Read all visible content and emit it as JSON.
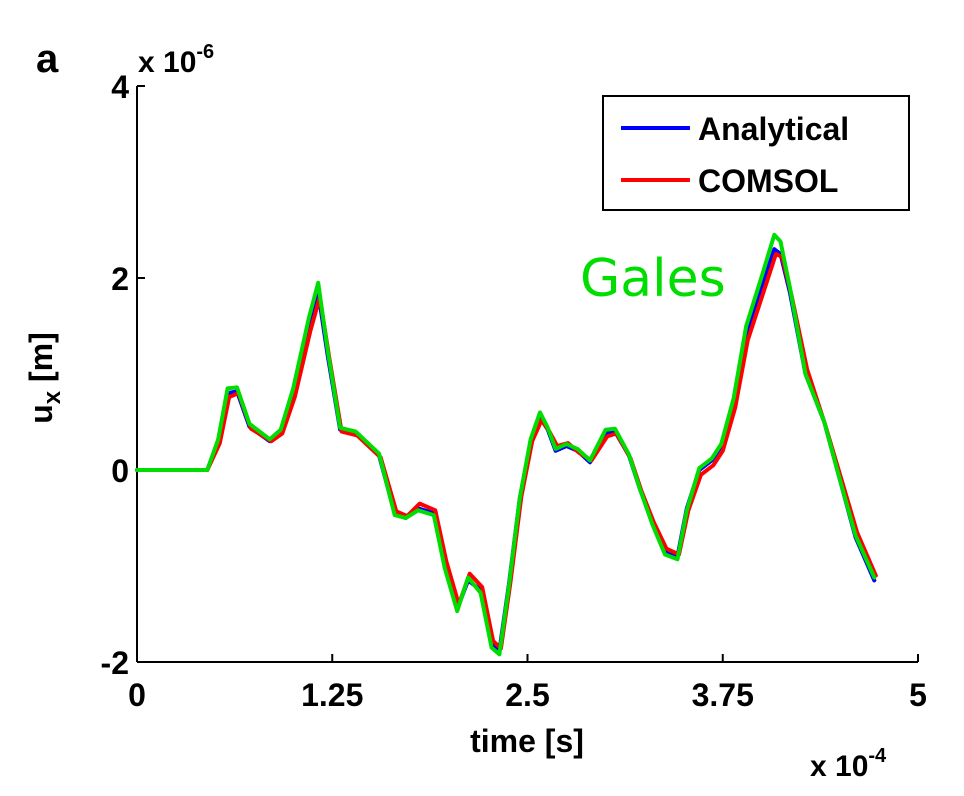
{
  "panel_label": "a",
  "chart_data": {
    "type": "line",
    "xlabel": "time [s]",
    "ylabel_base": "u",
    "ylabel_sub": "x",
    "ylabel_unit": " [m]",
    "x_scale_label": "x 10",
    "x_scale_exp": "-4",
    "y_scale_label": "x 10",
    "y_scale_exp": "-6",
    "xlim": [
      0,
      5
    ],
    "ylim": [
      -2,
      4
    ],
    "x_ticks": [
      0,
      1.25,
      2.5,
      3.75,
      5
    ],
    "x_tick_labels": [
      "0",
      "1.25",
      "2.5",
      "3.75",
      "5"
    ],
    "y_ticks": [
      -2,
      0,
      2,
      4
    ],
    "y_tick_labels": [
      "-2",
      "0",
      "2",
      "4"
    ],
    "grid": false,
    "legend_position": "top-right",
    "series": [
      {
        "name": "Analytical",
        "color": "#0000ff",
        "x": [
          0,
          0.45,
          0.52,
          0.58,
          0.64,
          0.72,
          0.85,
          0.92,
          1.0,
          1.1,
          1.16,
          1.22,
          1.3,
          1.4,
          1.55,
          1.65,
          1.72,
          1.8,
          1.9,
          1.97,
          2.05,
          2.12,
          2.2,
          2.27,
          2.32,
          2.38,
          2.45,
          2.52,
          2.58,
          2.63,
          2.68,
          2.75,
          2.82,
          2.9,
          3.0,
          3.06,
          3.15,
          3.22,
          3.3,
          3.38,
          3.46,
          3.52,
          3.6,
          3.68,
          3.74,
          3.82,
          3.9,
          4.0,
          4.08,
          4.12,
          4.18,
          4.28,
          4.4,
          4.5,
          4.6,
          4.72
        ],
        "y": [
          0,
          0,
          0.3,
          0.8,
          0.82,
          0.45,
          0.3,
          0.4,
          0.8,
          1.5,
          1.85,
          1.2,
          0.42,
          0.38,
          0.15,
          -0.45,
          -0.5,
          -0.4,
          -0.45,
          -1.0,
          -1.45,
          -1.15,
          -1.25,
          -1.8,
          -1.88,
          -1.2,
          -0.3,
          0.3,
          0.55,
          0.42,
          0.2,
          0.25,
          0.2,
          0.08,
          0.38,
          0.4,
          0.15,
          -0.2,
          -0.55,
          -0.85,
          -0.9,
          -0.4,
          0.0,
          0.1,
          0.25,
          0.7,
          1.4,
          1.9,
          2.3,
          2.25,
          1.85,
          1.0,
          0.5,
          -0.1,
          -0.7,
          -1.15
        ]
      },
      {
        "name": "COMSOL",
        "color": "#ff0000",
        "x": [
          0,
          0.45,
          0.53,
          0.59,
          0.65,
          0.73,
          0.86,
          0.93,
          1.01,
          1.11,
          1.17,
          1.23,
          1.31,
          1.41,
          1.56,
          1.66,
          1.73,
          1.81,
          1.91,
          1.98,
          2.06,
          2.13,
          2.21,
          2.28,
          2.33,
          2.39,
          2.46,
          2.53,
          2.59,
          2.64,
          2.69,
          2.76,
          2.83,
          2.91,
          3.01,
          3.07,
          3.16,
          3.23,
          3.31,
          3.39,
          3.47,
          3.53,
          3.61,
          3.69,
          3.75,
          3.83,
          3.91,
          4.01,
          4.09,
          4.13,
          4.19,
          4.29,
          4.41,
          4.51,
          4.61,
          4.73
        ],
        "y": [
          0,
          0,
          0.28,
          0.76,
          0.8,
          0.43,
          0.3,
          0.38,
          0.76,
          1.45,
          1.8,
          1.18,
          0.4,
          0.36,
          0.13,
          -0.43,
          -0.48,
          -0.35,
          -0.42,
          -0.95,
          -1.4,
          -1.08,
          -1.22,
          -1.78,
          -1.86,
          -1.18,
          -0.28,
          0.3,
          0.52,
          0.4,
          0.25,
          0.28,
          0.18,
          0.1,
          0.35,
          0.38,
          0.12,
          -0.22,
          -0.55,
          -0.82,
          -0.88,
          -0.42,
          -0.05,
          0.05,
          0.2,
          0.65,
          1.35,
          1.85,
          2.25,
          2.22,
          1.82,
          1.05,
          0.45,
          -0.1,
          -0.65,
          -1.1
        ]
      },
      {
        "name": "Gales",
        "color": "#00dd00",
        "x": [
          0,
          0.45,
          0.52,
          0.58,
          0.64,
          0.72,
          0.85,
          0.92,
          1.0,
          1.1,
          1.16,
          1.22,
          1.3,
          1.4,
          1.55,
          1.65,
          1.72,
          1.8,
          1.9,
          1.97,
          2.05,
          2.12,
          2.2,
          2.27,
          2.32,
          2.38,
          2.45,
          2.52,
          2.58,
          2.63,
          2.68,
          2.75,
          2.82,
          2.9,
          3.0,
          3.06,
          3.15,
          3.22,
          3.3,
          3.38,
          3.46,
          3.52,
          3.6,
          3.68,
          3.74,
          3.82,
          3.9,
          4.0,
          4.08,
          4.12,
          4.18,
          4.28,
          4.4,
          4.5,
          4.6,
          4.72
        ],
        "y": [
          0,
          0,
          0.32,
          0.85,
          0.86,
          0.48,
          0.32,
          0.42,
          0.85,
          1.58,
          1.95,
          1.25,
          0.44,
          0.4,
          0.17,
          -0.47,
          -0.5,
          -0.42,
          -0.47,
          -1.02,
          -1.47,
          -1.12,
          -1.28,
          -1.85,
          -1.92,
          -1.22,
          -0.3,
          0.32,
          0.6,
          0.44,
          0.22,
          0.27,
          0.22,
          0.1,
          0.42,
          0.43,
          0.16,
          -0.2,
          -0.57,
          -0.88,
          -0.93,
          -0.42,
          0.02,
          0.12,
          0.27,
          0.75,
          1.5,
          2.02,
          2.45,
          2.38,
          1.9,
          1.0,
          0.5,
          -0.1,
          -0.68,
          -1.12
        ]
      }
    ]
  }
}
